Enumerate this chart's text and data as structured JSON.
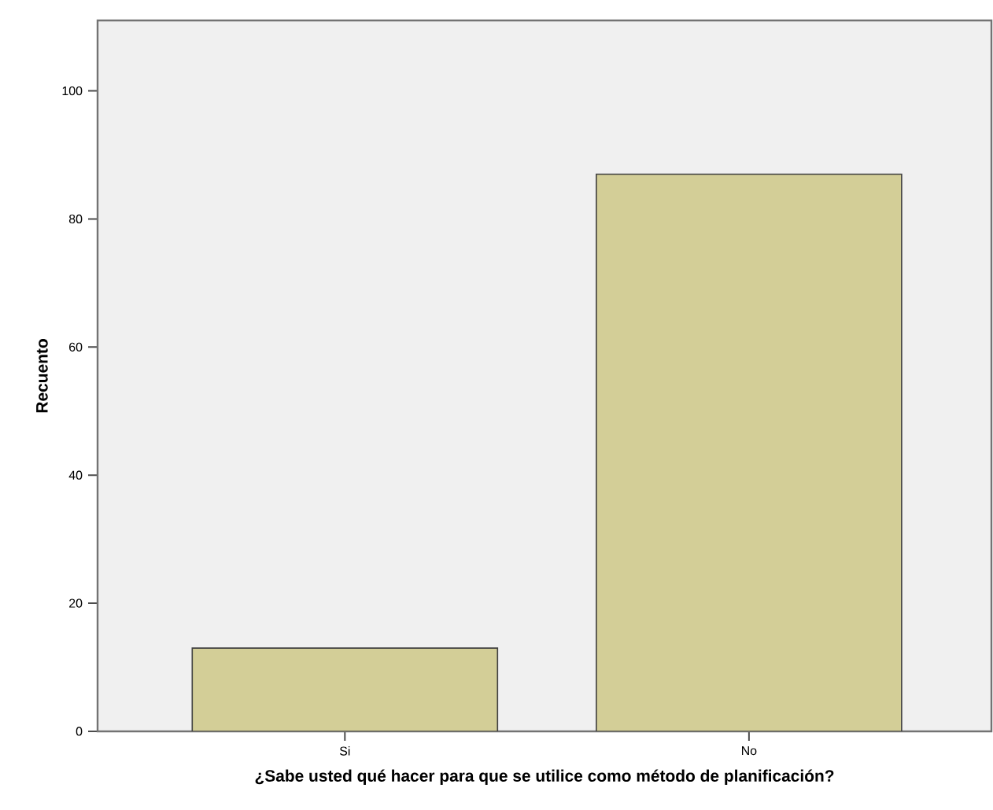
{
  "chart_data": {
    "type": "bar",
    "xlabel": "¿Sabe usted qué hacer para que se utilice como método de planificación?",
    "ylabel": "Recuento",
    "categories": [
      "Si",
      "No"
    ],
    "values": [
      13,
      87
    ],
    "color": "#d3ce97",
    "ylim": [
      0,
      111
    ],
    "yticks": [
      0,
      20,
      40,
      60,
      80,
      100
    ]
  }
}
